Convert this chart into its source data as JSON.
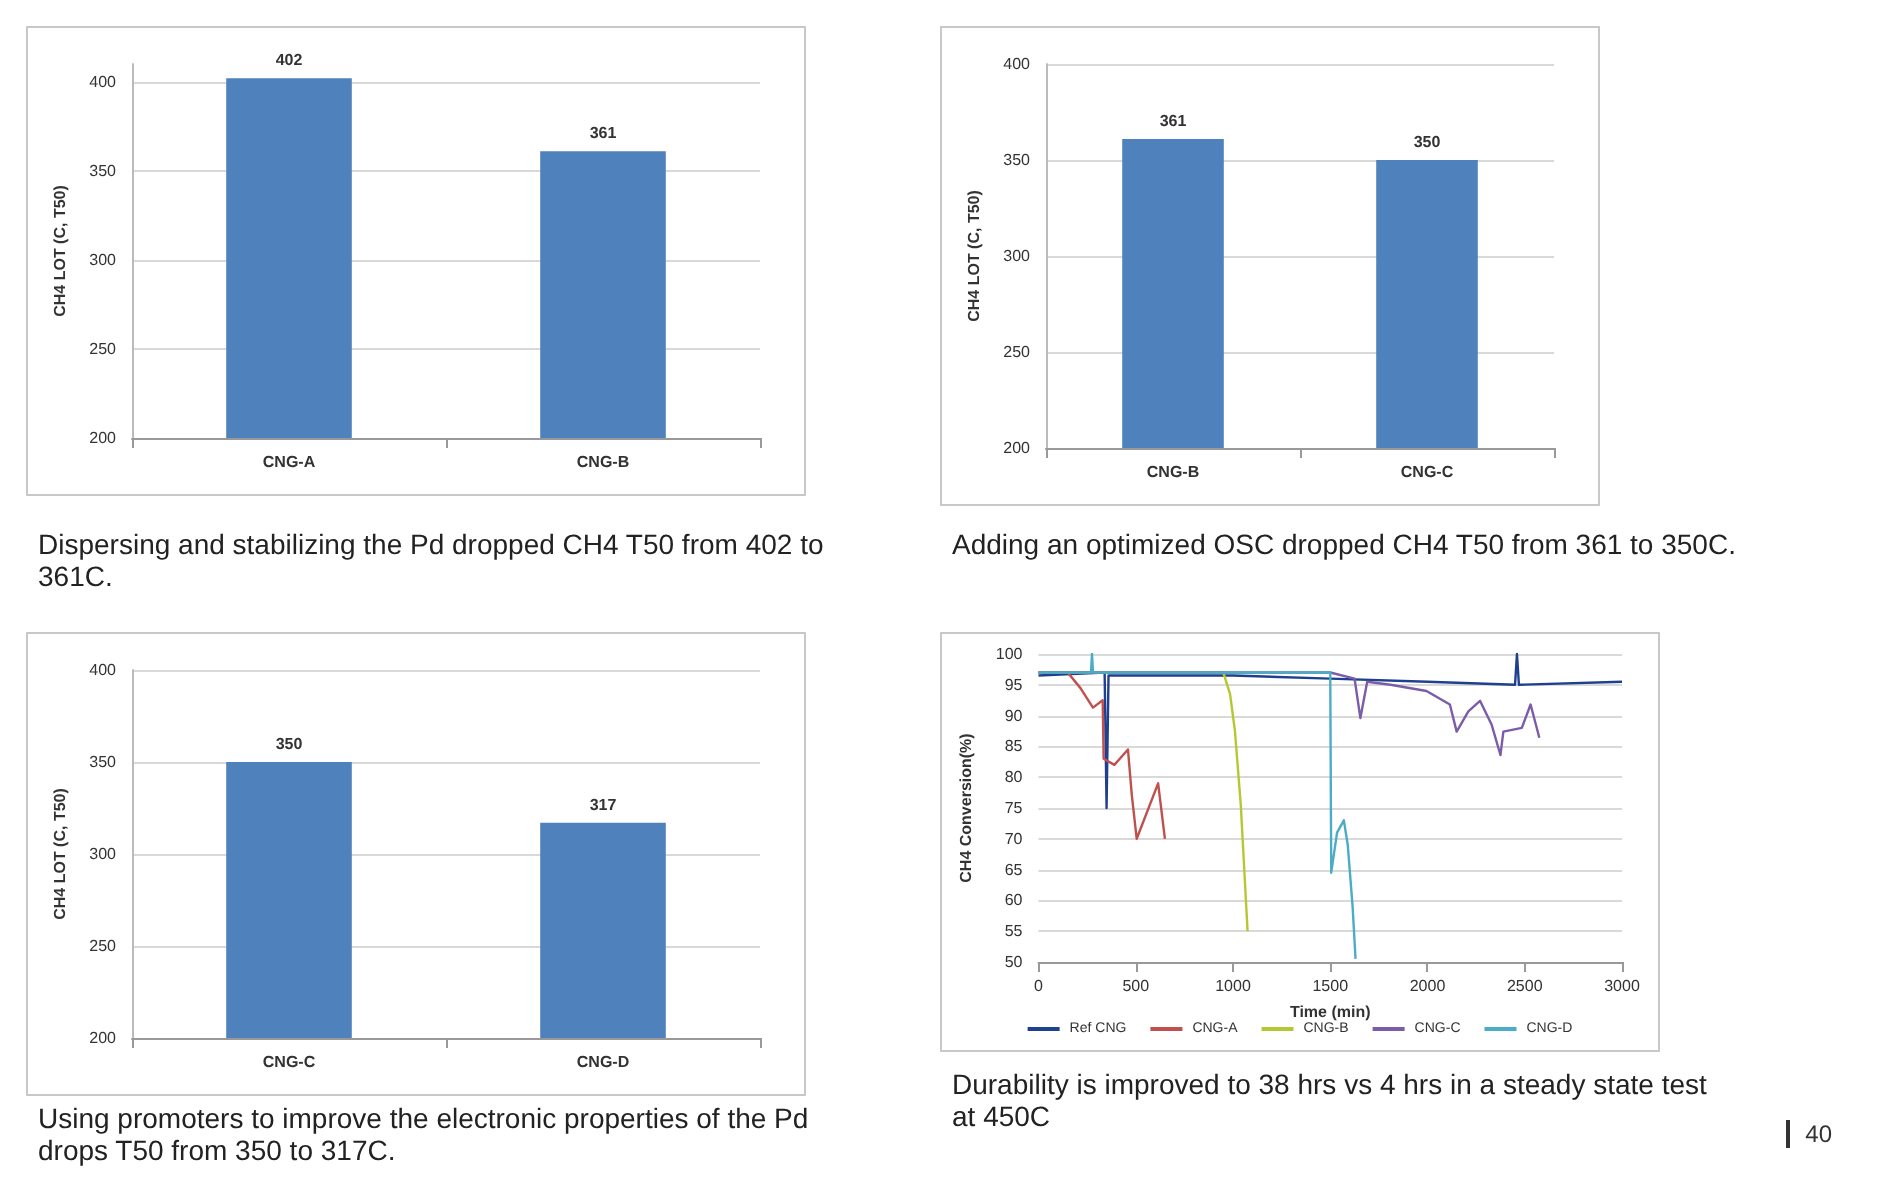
{
  "chart_data": [
    {
      "type": "bar",
      "categories": [
        "CNG-A",
        "CNG-B"
      ],
      "values": [
        402,
        361
      ],
      "color": "#4f81bd",
      "ylabel": "CH4 LOT (C, T50)",
      "ylim": [
        200,
        410
      ],
      "yticks": [
        200,
        250,
        300,
        350,
        400
      ],
      "grid": "y",
      "data_labels": true,
      "annotations": [
        "Dispersing and stabilizing the Pd dropped CH4 T50 from 402 to 361C."
      ]
    },
    {
      "type": "bar",
      "categories": [
        "CNG-B",
        "CNG-C"
      ],
      "values": [
        361,
        350
      ],
      "color": "#4f81bd",
      "ylabel": "CH4 LOT (C, T50)",
      "ylim": [
        200,
        400
      ],
      "yticks": [
        200,
        250,
        300,
        350,
        400
      ],
      "grid": "y",
      "data_labels": true,
      "annotations": [
        "Adding an optimized OSC dropped CH4 T50 from 361 to 350C."
      ]
    },
    {
      "type": "bar",
      "categories": [
        "CNG-C",
        "CNG-D"
      ],
      "values": [
        350,
        317
      ],
      "color": "#4f81bd",
      "ylabel": "CH4 LOT (C, T50)",
      "ylim": [
        200,
        400
      ],
      "yticks": [
        200,
        250,
        300,
        350,
        400
      ],
      "grid": "y",
      "data_labels": true,
      "annotations": [
        "Using promoters to improve the electronic properties of the Pd drops T50 from 350 to 317C."
      ]
    },
    {
      "type": "line",
      "xlabel": "Time (min)",
      "ylabel": "CH4 Conversion(%)",
      "xlim": [
        0,
        3000
      ],
      "xticks": [
        0,
        500,
        1000,
        1500,
        2000,
        2500,
        3000
      ],
      "ylim": [
        50,
        100
      ],
      "yticks": [
        50,
        55,
        60,
        65,
        70,
        75,
        80,
        85,
        90,
        95,
        100
      ],
      "grid": "y",
      "legend": "bottom",
      "marker": "none",
      "line_style": "solid",
      "series": [
        {
          "name": "Ref CNG",
          "color": "#1f3f8f",
          "x": [
            0,
            340,
            350,
            360,
            1000,
            1500,
            2000,
            2450,
            2460,
            2470,
            3000
          ],
          "values": [
            96.5,
            97,
            75,
            96.5,
            96.5,
            96,
            95.5,
            95,
            100,
            95,
            95.5
          ]
        },
        {
          "name": "CNG-A",
          "color": "#c0504d",
          "x": [
            0,
            150,
            215,
            280,
            330,
            335,
            390,
            460,
            480,
            505,
            615,
            650
          ],
          "values": [
            97,
            97,
            94.5,
            91.3,
            92.5,
            83,
            82,
            84.5,
            77,
            70,
            79,
            70
          ]
        },
        {
          "name": "CNG-B",
          "color": "#b5c832",
          "x": [
            0,
            950,
            985,
            1010,
            1040,
            1075
          ],
          "values": [
            97,
            97,
            93.5,
            87.5,
            75.5,
            55
          ]
        },
        {
          "name": "CNG-C",
          "color": "#7a5ca8",
          "x": [
            0,
            1500,
            1625,
            1655,
            1690,
            1810,
            1995,
            2115,
            2150,
            2210,
            2270,
            2330,
            2375,
            2390,
            2485,
            2530,
            2575
          ],
          "values": [
            97,
            97,
            96,
            89.6,
            95.5,
            95,
            94,
            91.8,
            87.4,
            90.7,
            92.4,
            88.5,
            83.6,
            87.4,
            88,
            91.8,
            86.4
          ]
        },
        {
          "name": "CNG-D",
          "color": "#4bacc6",
          "x": [
            0,
            270,
            275,
            280,
            1500,
            1505,
            1535,
            1570,
            1590,
            1615,
            1630
          ],
          "values": [
            97,
            97,
            100,
            97,
            97,
            64.5,
            71,
            73,
            69,
            59,
            50.5
          ]
        }
      ],
      "annotations": [
        "Durability is improved to 38 hrs vs 4 hrs in a steady state test at 450C",
        "40"
      ]
    }
  ]
}
